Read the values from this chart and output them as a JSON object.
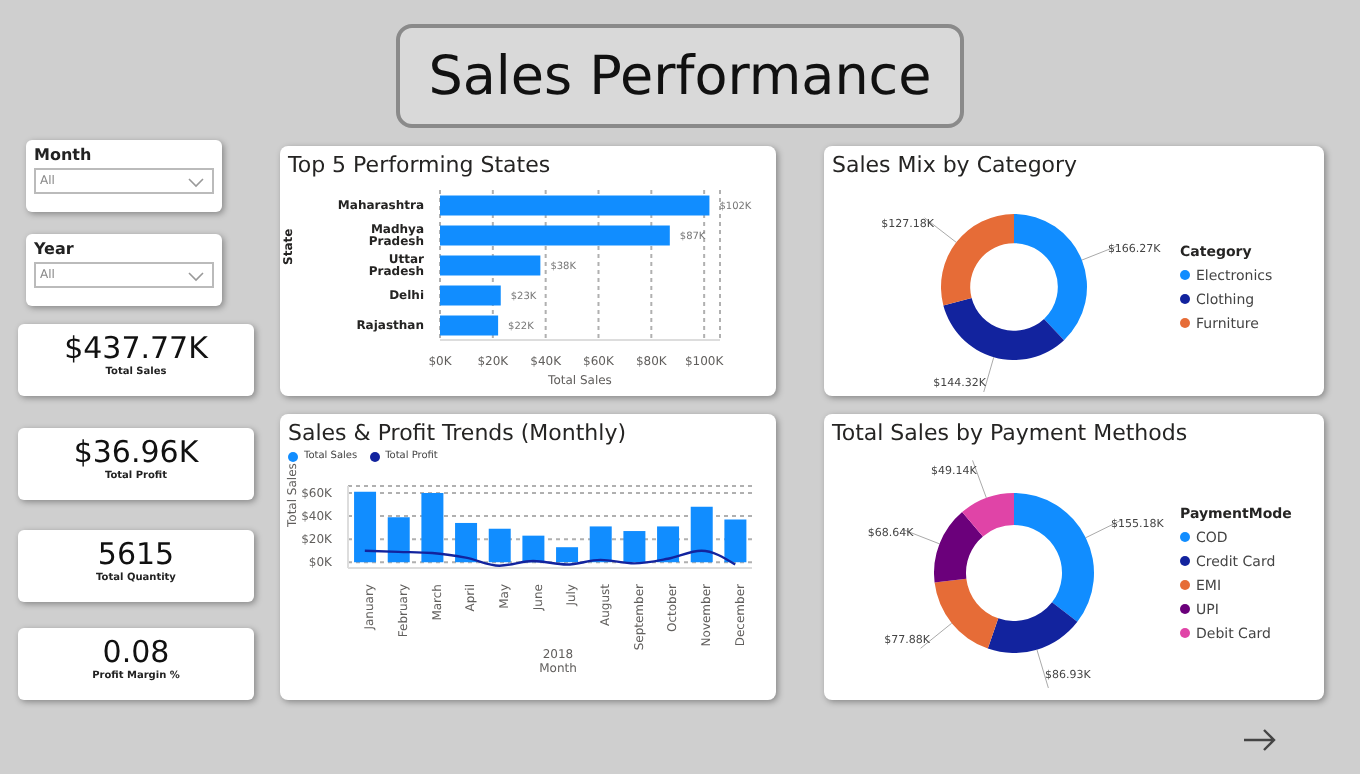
{
  "chart_data": [
    {
      "type": "other",
      "title": "Sales Performance",
      "annotations": [
        "Month",
        "All",
        "Year",
        "All",
        "$437.77K",
        "Total Sales",
        "$36.96K",
        "Total Profit",
        "5615",
        "Total Quantity",
        "0.08",
        "Profit Margin %"
      ]
    },
    {
      "type": "bar",
      "orientation": "horizontal",
      "title": "Top 5 Performing States",
      "xlabel": "Total Sales",
      "ylabel": "State",
      "categories": [
        "Maharashtra",
        "Madhya Pradesh",
        "Uttar Pradesh",
        "Delhi",
        "Rajasthan"
      ],
      "values": [
        102,
        87,
        38,
        23,
        22
      ],
      "value_labels": [
        "$102K",
        "$87K",
        "$38K",
        "$23K",
        "$22K"
      ],
      "color": "#118dff",
      "xlim": [
        0,
        106
      ],
      "xticks": [
        {
          "value": 0,
          "label": "$0K"
        },
        {
          "value": 20,
          "label": "$20K"
        },
        {
          "value": 40,
          "label": "$40K"
        },
        {
          "value": 60,
          "label": "$60K"
        },
        {
          "value": 80,
          "label": "$80K"
        },
        {
          "value": 100,
          "label": "$100K"
        }
      ],
      "grid": "x"
    },
    {
      "type": "donut",
      "title": "Sales Mix by Category",
      "legend_title": "Category",
      "legend": "right",
      "categories": [
        "Electronics",
        "Clothing",
        "Furniture"
      ],
      "values": [
        166.27,
        144.32,
        127.18
      ],
      "value_labels": [
        "$166.27K",
        "$144.32K",
        "$127.18K"
      ],
      "colors": [
        "#118dff",
        "#12239e",
        "#e66c37"
      ]
    },
    {
      "type": "bar",
      "title": "Sales & Profit Trends (Monthly)",
      "xlabel": "Month",
      "ylabel": "Total Sales",
      "annotations": [
        "2018"
      ],
      "legend": "top left",
      "grid": "y",
      "marker": "none",
      "categories": [
        "January",
        "February",
        "March",
        "April",
        "May",
        "June",
        "July",
        "August",
        "September",
        "October",
        "November",
        "December"
      ],
      "series": [
        {
          "name": "Total Sales",
          "color": "#118dff",
          "values": [
            61,
            39,
            60,
            34,
            29,
            23,
            13,
            31,
            27,
            31,
            48,
            37
          ]
        },
        {
          "name": "Total Profit",
          "type": "line",
          "color": "#12239e",
          "values": [
            10,
            9,
            8,
            4,
            -3,
            1,
            -2,
            2,
            -1,
            3,
            10,
            -2
          ]
        }
      ],
      "ylim": [
        -5,
        66
      ],
      "yticks": [
        {
          "value": 0,
          "label": "$0K"
        },
        {
          "value": 20,
          "label": "$20K"
        },
        {
          "value": 40,
          "label": "$40K"
        },
        {
          "value": 60,
          "label": "$60K"
        }
      ]
    },
    {
      "type": "donut",
      "title": "Total Sales by Payment Methods",
      "legend_title": "PaymentMode",
      "legend": "right",
      "categories": [
        "COD",
        "Credit Card",
        "EMI",
        "UPI",
        "Debit Card"
      ],
      "values": [
        155.18,
        86.93,
        77.88,
        68.64,
        49.14
      ],
      "value_labels": [
        "$155.18K",
        "$86.93K",
        "$77.88K",
        "$68.64K",
        "$49.14K"
      ],
      "colors": [
        "#118dff",
        "#12239e",
        "#e66c37",
        "#6b007b",
        "#e044a7"
      ]
    }
  ]
}
